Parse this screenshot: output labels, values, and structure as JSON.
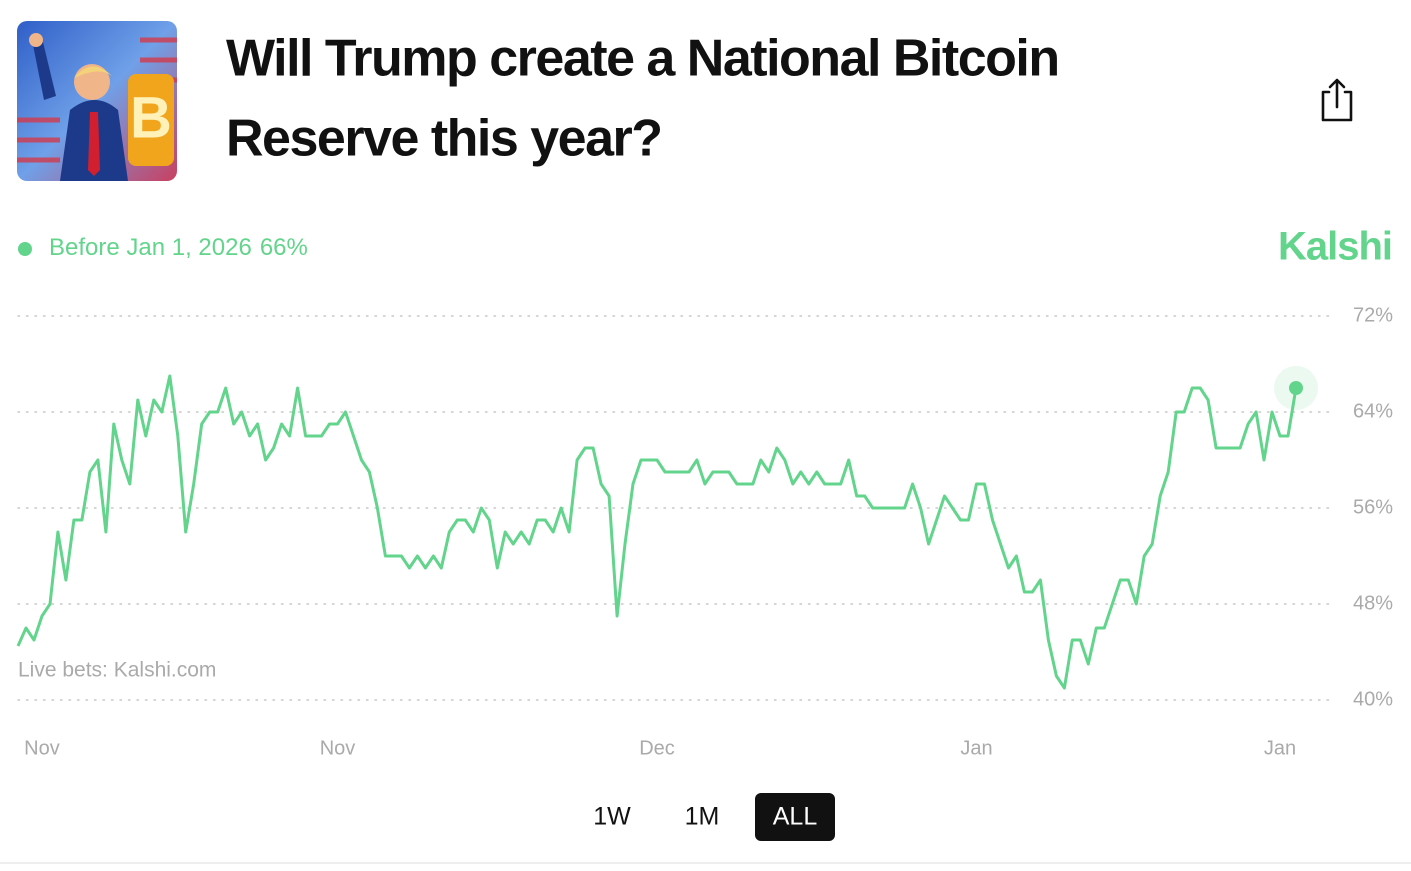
{
  "header": {
    "title_lines": [
      "Will Trump create a National Bitcoin",
      "Reserve this year?"
    ],
    "brand": "Kalshi"
  },
  "chart_data": {
    "type": "line",
    "watermark": "Live bets: Kalshi.com",
    "categories": [
      null,
      null,
      null,
      "Nov",
      null,
      null,
      null,
      null,
      null,
      null,
      null,
      null,
      null,
      null,
      null,
      null,
      null,
      null,
      null,
      null,
      null,
      null,
      null,
      null,
      null,
      null,
      null,
      null,
      null,
      null,
      null,
      null,
      null,
      null,
      null,
      null,
      null,
      null,
      null,
      null,
      "Nov",
      null,
      null,
      null,
      null,
      null,
      null,
      null,
      null,
      null,
      null,
      null,
      null,
      null,
      null,
      null,
      null,
      null,
      null,
      null,
      null,
      null,
      null,
      null,
      null,
      null,
      null,
      null,
      null,
      null,
      null,
      null,
      null,
      null,
      null,
      null,
      null,
      null,
      null,
      null,
      "Dec",
      null,
      null,
      null,
      null,
      null,
      null,
      null,
      null,
      null,
      null,
      null,
      null,
      null,
      null,
      null,
      null,
      null,
      null,
      null,
      null,
      null,
      null,
      null,
      null,
      null,
      null,
      null,
      null,
      null,
      null,
      null,
      null,
      null,
      null,
      null,
      null,
      null,
      null,
      null,
      "Jan",
      null,
      null,
      null,
      null,
      null,
      null,
      null,
      null,
      null,
      null,
      null,
      null,
      null,
      null,
      null,
      null,
      null,
      null,
      null,
      null,
      null,
      null,
      null,
      null,
      null,
      null,
      null,
      null,
      null,
      null,
      null,
      null,
      null,
      null,
      null,
      null,
      null,
      "Jan",
      null,
      null
    ],
    "series": [
      {
        "name": "Before Jan 1, 2026",
        "color": "#62d48c",
        "current_value_label": "66%",
        "values": [
          44.5,
          46,
          45,
          47,
          48,
          54,
          50,
          55,
          55,
          59,
          60,
          54,
          63,
          60,
          58,
          65,
          62,
          65,
          64,
          67,
          62,
          54,
          58,
          63,
          64,
          64,
          66,
          63,
          64,
          62,
          63,
          60,
          61,
          63,
          62,
          66,
          62,
          62,
          62,
          63,
          63,
          64,
          62,
          60,
          59,
          56,
          52,
          52,
          52,
          51,
          52,
          51,
          52,
          51,
          54,
          55,
          55,
          54,
          56,
          55,
          51,
          54,
          53,
          54,
          53,
          55,
          55,
          54,
          56,
          54,
          60,
          61,
          61,
          58,
          57,
          47,
          53,
          58,
          60,
          60,
          60,
          59,
          59,
          59,
          59,
          60,
          58,
          59,
          59,
          59,
          58,
          58,
          58,
          60,
          59,
          61,
          60,
          58,
          59,
          58,
          59,
          58,
          58,
          58,
          60,
          57,
          57,
          56,
          56,
          56,
          56,
          56,
          58,
          56,
          53,
          55,
          57,
          56,
          55,
          55,
          58,
          58,
          55,
          53,
          51,
          52,
          49,
          49,
          50,
          45,
          42,
          41,
          45,
          45,
          43,
          46,
          46,
          48,
          50,
          50,
          48,
          52,
          53,
          57,
          59,
          64,
          64,
          66,
          66,
          65,
          61,
          61,
          61,
          61,
          63,
          64,
          60,
          64,
          62,
          62,
          66
        ]
      }
    ],
    "ylim": [
      40,
      72
    ],
    "yticks": [
      {
        "value": 40,
        "label": "40%"
      },
      {
        "value": 48,
        "label": "48%"
      },
      {
        "value": 56,
        "label": "56%"
      },
      {
        "value": 64,
        "label": "64%"
      },
      {
        "value": 72,
        "label": "72%"
      }
    ],
    "grid": true
  },
  "controls": {
    "ranges": [
      "1W",
      "1M",
      "ALL"
    ],
    "active": "ALL"
  }
}
